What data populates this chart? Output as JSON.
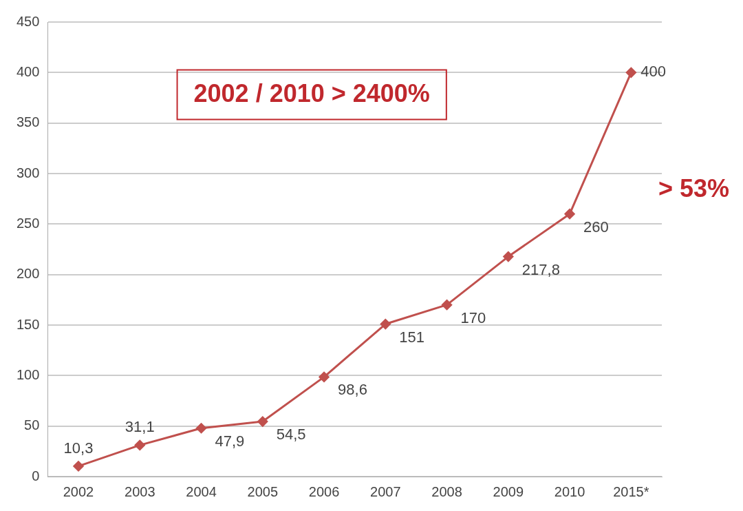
{
  "chart_data": {
    "type": "line",
    "categories": [
      "2002",
      "2003",
      "2004",
      "2005",
      "2006",
      "2007",
      "2008",
      "2009",
      "2010",
      "2015*"
    ],
    "series": [
      {
        "color": "#c0504d",
        "values": [
          10.3,
          31.1,
          47.9,
          54.5,
          98.6,
          151,
          170,
          217.8,
          260,
          400
        ],
        "value_labels": [
          "10,3",
          "31,1",
          "47,9",
          "54,5",
          "98,6",
          "151",
          "170",
          "217,8",
          "260",
          "400"
        ]
      }
    ],
    "ylim": [
      0,
      450
    ],
    "yticks": [
      0,
      50,
      100,
      150,
      200,
      250,
      300,
      350,
      400,
      450
    ],
    "grid": "y",
    "legend": false,
    "marker": "diamond",
    "line_style": "solid",
    "annotations": [
      "2002 / 2010 > 2400%",
      "> 53%"
    ]
  }
}
